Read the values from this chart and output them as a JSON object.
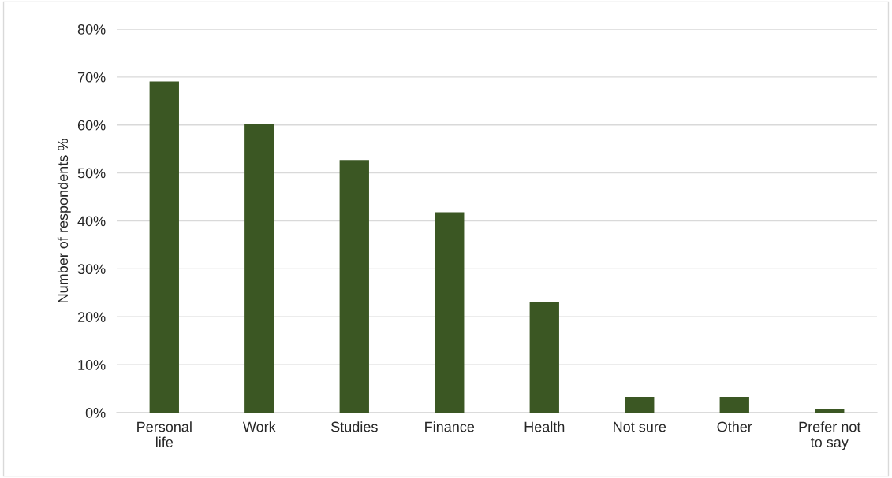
{
  "chart_data": {
    "type": "bar",
    "ylabel": "Number of respondents %",
    "categories": [
      "Personal\nlife",
      "Work",
      "Studies",
      "Finance",
      "Health",
      "Not sure",
      "Other",
      "Prefer not\nto say"
    ],
    "values": [
      69.1,
      60.2,
      52.7,
      41.8,
      23.0,
      3.3,
      3.3,
      0.8
    ],
    "color": "#3b5723",
    "ylim": [
      0,
      80
    ],
    "yticks": [
      {
        "value": 0,
        "label": "0%"
      },
      {
        "value": 10,
        "label": "10%"
      },
      {
        "value": 20,
        "label": "20%"
      },
      {
        "value": 30,
        "label": "30%"
      },
      {
        "value": 40,
        "label": "40%"
      },
      {
        "value": 50,
        "label": "50%"
      },
      {
        "value": 60,
        "label": "60%"
      },
      {
        "value": 70,
        "label": "70%"
      },
      {
        "value": 80,
        "label": "80%"
      }
    ],
    "grid": "y"
  }
}
